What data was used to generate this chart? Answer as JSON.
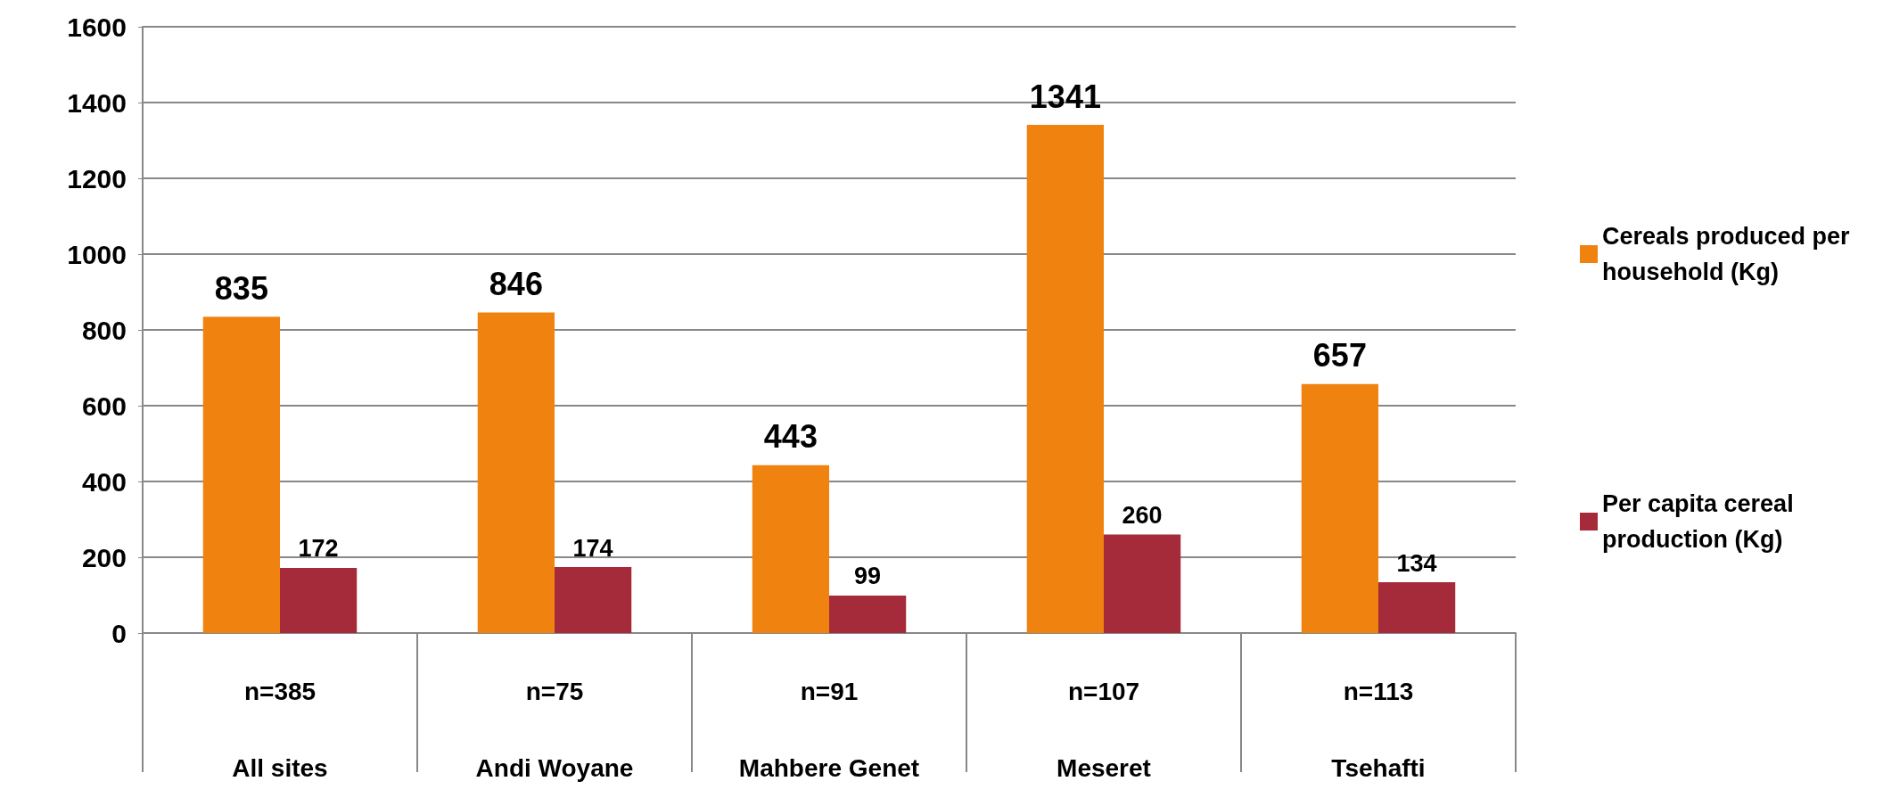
{
  "chart_data": {
    "type": "bar",
    "categories": [
      "n=385\nAll sites",
      "n=75\nAndi Woyane",
      "n=91\nMahbere Genet",
      "n=107\nMeseret",
      "n=113\nTsehafti"
    ],
    "series": [
      {
        "name": "Cereals produced per household (Kg)",
        "color": "#f0820f",
        "values": [
          835,
          846,
          443,
          1341,
          657
        ]
      },
      {
        "name": "Per capita cereal production (Kg)",
        "color": "#a52a3a",
        "values": [
          172,
          174,
          99,
          260,
          134
        ]
      }
    ],
    "ylim": [
      0,
      1600
    ],
    "yticks": [
      0,
      200,
      400,
      600,
      800,
      1000,
      1200,
      1400,
      1600
    ],
    "grid": "y",
    "legend": "right",
    "data_labels": true
  }
}
